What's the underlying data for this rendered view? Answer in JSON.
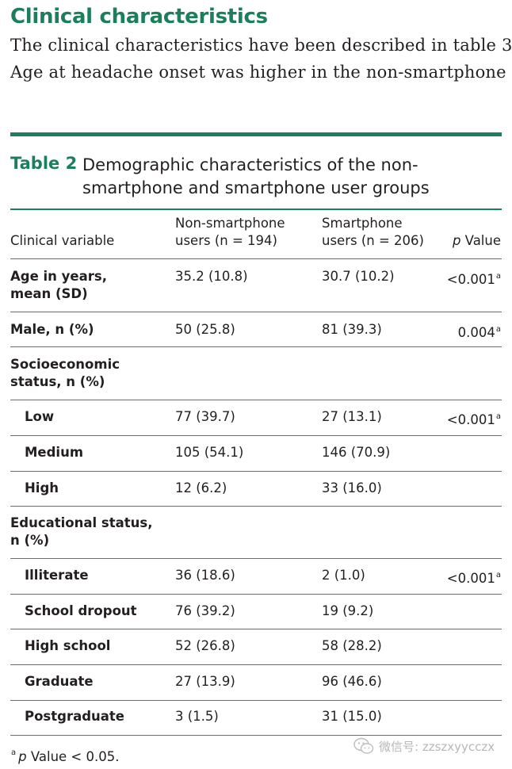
{
  "section_heading": "Clinical characteristics",
  "body_lines": [
    "The clinical characteristics have been described in table 3.",
    "Age at headache onset was higher in the non-smartphone"
  ],
  "table": {
    "label": "Table 2",
    "caption_lines": [
      "Demographic characteristics of the non-",
      "smartphone and smartphone user groups"
    ],
    "header": {
      "col1": "Clinical variable",
      "col2_line1": "Non-smartphone",
      "col2_line2": "users (n = 194)",
      "col3_line1": "Smartphone",
      "col3_line2": "users (n = 206)",
      "col4_italic": "p",
      "col4_rest": " Value"
    },
    "rows": [
      {
        "label_line1": "Age in years,",
        "label_line2": "mean (SD)",
        "non_smartphone": "35.2 (10.8)",
        "smartphone": "30.7 (10.2)",
        "p_value": "<0.001",
        "p_sup": "a"
      },
      {
        "label_line1": "Male, n (%)",
        "non_smartphone": "50 (25.8)",
        "smartphone": "81 (39.3)",
        "p_value": "0.004",
        "p_sup": "a"
      },
      {
        "label_line1": "Socioeconomic",
        "label_line2": "status, n (%)"
      },
      {
        "label_line1": "Low",
        "non_smartphone": "77 (39.7)",
        "smartphone": "27 (13.1)",
        "p_value": "<0.001",
        "p_sup": "a"
      },
      {
        "label_line1": "Medium",
        "non_smartphone": "105 (54.1)",
        "smartphone": "146 (70.9)"
      },
      {
        "label_line1": "High",
        "non_smartphone": "12 (6.2)",
        "smartphone": "33 (16.0)"
      },
      {
        "label_line1": "Educational status,",
        "label_line2": "n (%)"
      },
      {
        "label_line1": "Illiterate",
        "non_smartphone": "36 (18.6)",
        "smartphone": "2 (1.0)",
        "p_value": "<0.001",
        "p_sup": "a"
      },
      {
        "label_line1": "School dropout",
        "non_smartphone": "76 (39.2)",
        "smartphone": "19 (9.2)"
      },
      {
        "label_line1": "High school",
        "non_smartphone": "52 (26.8)",
        "smartphone": "58 (28.2)"
      },
      {
        "label_line1": "Graduate",
        "non_smartphone": "27 (13.9)",
        "smartphone": "96 (46.6)"
      },
      {
        "label_line1": "Postgraduate",
        "non_smartphone": "3 (1.5)",
        "smartphone": "31 (15.0)"
      }
    ],
    "footnote": {
      "sup": "a",
      "italic": "p",
      "rest": " Value < 0.05."
    }
  },
  "watermark": {
    "text": "微信号: zzszxyycczx",
    "icon": "wechat-icon"
  },
  "colors": {
    "accent": "#1a7f5a",
    "text": "#231f20"
  }
}
